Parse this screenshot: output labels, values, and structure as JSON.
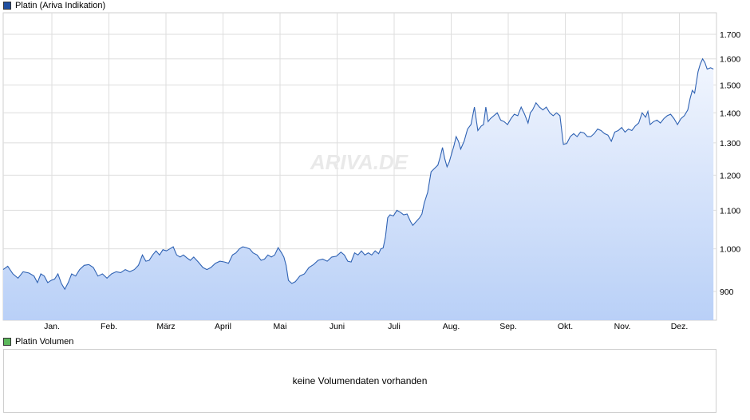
{
  "price_legend": {
    "label": "Platin (Ariva Indikation)",
    "color": "#1f4fa0"
  },
  "volume_legend": {
    "label": "Platin Volumen",
    "color": "#5cb85c"
  },
  "volume_panel": {
    "message": "keine Volumendaten vorhanden"
  },
  "watermark": "ARIVA.DE",
  "colors": {
    "line": "#2f62b3",
    "fill_top": "#f2f6fe",
    "fill_bottom": "#b9d0f7",
    "grid": "#dedede"
  },
  "chart_data": {
    "type": "area",
    "title": "",
    "xlabel": "",
    "ylabel": "",
    "x_tick_labels": [
      "Jan.",
      "Feb.",
      "März",
      "April",
      "Mai",
      "Juni",
      "Juli",
      "Aug.",
      "Sep.",
      "Okt.",
      "Nov.",
      "Dez."
    ],
    "y_tick_labels": [
      "900",
      "1.000",
      "1.100",
      "1.200",
      "1.300",
      "1.400",
      "1.500",
      "1.600",
      "1.700"
    ],
    "y_ticks": [
      900,
      1000,
      1100,
      1200,
      1300,
      1400,
      1500,
      1600,
      1700
    ],
    "ylim": [
      860,
      1780
    ],
    "y_scale": "log",
    "x_domain": [
      0,
      12.45
    ],
    "grid": true,
    "series": [
      {
        "values": [
          [
            0.0,
            950
          ],
          [
            0.08,
            958
          ],
          [
            0.17,
            940
          ],
          [
            0.26,
            930
          ],
          [
            0.35,
            945
          ],
          [
            0.45,
            942
          ],
          [
            0.54,
            935
          ],
          [
            0.6,
            920
          ],
          [
            0.66,
            940
          ],
          [
            0.72,
            935
          ],
          [
            0.78,
            920
          ],
          [
            0.84,
            925
          ],
          [
            0.9,
            928
          ],
          [
            0.96,
            940
          ],
          [
            1.02,
            918
          ],
          [
            1.08,
            905
          ],
          [
            1.14,
            920
          ],
          [
            1.2,
            940
          ],
          [
            1.27,
            935
          ],
          [
            1.34,
            950
          ],
          [
            1.42,
            960
          ],
          [
            1.5,
            962
          ],
          [
            1.58,
            955
          ],
          [
            1.66,
            935
          ],
          [
            1.74,
            940
          ],
          [
            1.82,
            930
          ],
          [
            1.9,
            940
          ],
          [
            1.98,
            945
          ],
          [
            2.06,
            943
          ],
          [
            2.14,
            950
          ],
          [
            2.22,
            945
          ],
          [
            2.3,
            950
          ],
          [
            2.37,
            960
          ],
          [
            2.44,
            985
          ],
          [
            2.5,
            970
          ],
          [
            2.56,
            972
          ],
          [
            2.62,
            985
          ],
          [
            2.68,
            995
          ],
          [
            2.74,
            985
          ],
          [
            2.8,
            998
          ],
          [
            2.86,
            995
          ],
          [
            2.92,
            1000
          ],
          [
            2.98,
            1005
          ],
          [
            3.04,
            985
          ],
          [
            3.1,
            980
          ],
          [
            3.16,
            985
          ],
          [
            3.22,
            978
          ],
          [
            3.28,
            972
          ],
          [
            3.34,
            980
          ],
          [
            3.42,
            968
          ],
          [
            3.5,
            955
          ],
          [
            3.57,
            950
          ],
          [
            3.64,
            955
          ],
          [
            3.72,
            965
          ],
          [
            3.8,
            970
          ],
          [
            3.88,
            968
          ],
          [
            3.95,
            965
          ],
          [
            4.02,
            985
          ],
          [
            4.08,
            990
          ],
          [
            4.14,
            1000
          ],
          [
            4.2,
            1005
          ],
          [
            4.26,
            1003
          ],
          [
            4.32,
            1000
          ],
          [
            4.38,
            990
          ],
          [
            4.45,
            985
          ],
          [
            4.52,
            972
          ],
          [
            4.58,
            975
          ],
          [
            4.64,
            985
          ],
          [
            4.7,
            980
          ],
          [
            4.76,
            985
          ],
          [
            4.82,
            1003
          ],
          [
            4.88,
            990
          ],
          [
            4.92,
            980
          ],
          [
            4.96,
            960
          ],
          [
            5.0,
            925
          ],
          [
            5.06,
            918
          ],
          [
            5.12,
            922
          ],
          [
            5.2,
            935
          ],
          [
            5.28,
            940
          ],
          [
            5.36,
            955
          ],
          [
            5.44,
            962
          ],
          [
            5.52,
            972
          ],
          [
            5.6,
            975
          ],
          [
            5.68,
            970
          ],
          [
            5.76,
            980
          ],
          [
            5.84,
            982
          ],
          [
            5.92,
            992
          ],
          [
            5.98,
            985
          ],
          [
            6.04,
            970
          ],
          [
            6.1,
            968
          ],
          [
            6.16,
            990
          ],
          [
            6.22,
            985
          ],
          [
            6.28,
            995
          ],
          [
            6.34,
            985
          ],
          [
            6.4,
            990
          ],
          [
            6.46,
            985
          ],
          [
            6.52,
            995
          ],
          [
            6.58,
            988
          ],
          [
            6.62,
            1000
          ],
          [
            6.66,
            1002
          ],
          [
            6.7,
            1030
          ],
          [
            6.74,
            1080
          ],
          [
            6.78,
            1088
          ],
          [
            6.84,
            1085
          ],
          [
            6.9,
            1100
          ],
          [
            6.96,
            1095
          ],
          [
            7.02,
            1088
          ],
          [
            7.08,
            1090
          ],
          [
            7.14,
            1070
          ],
          [
            7.18,
            1060
          ],
          [
            7.24,
            1070
          ],
          [
            7.3,
            1080
          ],
          [
            7.34,
            1090
          ],
          [
            7.38,
            1120
          ],
          [
            7.44,
            1150
          ],
          [
            7.5,
            1210
          ],
          [
            7.56,
            1220
          ],
          [
            7.62,
            1230
          ],
          [
            7.66,
            1255
          ],
          [
            7.7,
            1285
          ],
          [
            7.74,
            1250
          ],
          [
            7.78,
            1225
          ],
          [
            7.82,
            1240
          ],
          [
            7.86,
            1265
          ],
          [
            7.9,
            1290
          ],
          [
            7.94,
            1320
          ],
          [
            7.98,
            1305
          ],
          [
            8.02,
            1280
          ],
          [
            8.08,
            1305
          ],
          [
            8.14,
            1345
          ],
          [
            8.2,
            1360
          ],
          [
            8.26,
            1420
          ],
          [
            8.32,
            1340
          ],
          [
            8.38,
            1355
          ],
          [
            8.42,
            1360
          ],
          [
            8.46,
            1420
          ],
          [
            8.5,
            1370
          ],
          [
            8.54,
            1380
          ],
          [
            8.6,
            1390
          ],
          [
            8.66,
            1400
          ],
          [
            8.72,
            1375
          ],
          [
            8.78,
            1370
          ],
          [
            8.84,
            1360
          ],
          [
            8.9,
            1380
          ],
          [
            8.96,
            1395
          ],
          [
            9.02,
            1390
          ],
          [
            9.08,
            1420
          ],
          [
            9.14,
            1395
          ],
          [
            9.2,
            1365
          ],
          [
            9.24,
            1400
          ],
          [
            9.28,
            1410
          ],
          [
            9.34,
            1435
          ],
          [
            9.4,
            1420
          ],
          [
            9.46,
            1410
          ],
          [
            9.52,
            1420
          ],
          [
            9.58,
            1400
          ],
          [
            9.64,
            1390
          ],
          [
            9.7,
            1400
          ],
          [
            9.76,
            1390
          ],
          [
            9.82,
            1295
          ],
          [
            9.88,
            1298
          ],
          [
            9.94,
            1320
          ],
          [
            10.0,
            1330
          ],
          [
            10.06,
            1320
          ],
          [
            10.12,
            1335
          ],
          [
            10.18,
            1332
          ],
          [
            10.24,
            1320
          ],
          [
            10.3,
            1320
          ],
          [
            10.36,
            1330
          ],
          [
            10.42,
            1345
          ],
          [
            10.48,
            1340
          ],
          [
            10.54,
            1330
          ],
          [
            10.6,
            1325
          ],
          [
            10.66,
            1305
          ],
          [
            10.72,
            1335
          ],
          [
            10.78,
            1340
          ],
          [
            10.84,
            1350
          ],
          [
            10.9,
            1335
          ],
          [
            10.96,
            1345
          ],
          [
            11.02,
            1340
          ],
          [
            11.08,
            1355
          ],
          [
            11.14,
            1365
          ],
          [
            11.2,
            1400
          ],
          [
            11.26,
            1385
          ],
          [
            11.3,
            1405
          ],
          [
            11.34,
            1360
          ],
          [
            11.4,
            1370
          ],
          [
            11.46,
            1375
          ],
          [
            11.52,
            1365
          ],
          [
            11.58,
            1380
          ],
          [
            11.64,
            1390
          ],
          [
            11.7,
            1395
          ],
          [
            11.76,
            1380
          ],
          [
            11.82,
            1360
          ],
          [
            11.88,
            1380
          ],
          [
            11.94,
            1390
          ],
          [
            12.0,
            1410
          ],
          [
            12.04,
            1450
          ],
          [
            12.08,
            1480
          ],
          [
            12.12,
            1470
          ],
          [
            12.18,
            1550
          ],
          [
            12.22,
            1580
          ],
          [
            12.26,
            1600
          ],
          [
            12.3,
            1585
          ],
          [
            12.34,
            1560
          ],
          [
            12.4,
            1565
          ],
          [
            12.45,
            1560
          ]
        ]
      }
    ]
  }
}
